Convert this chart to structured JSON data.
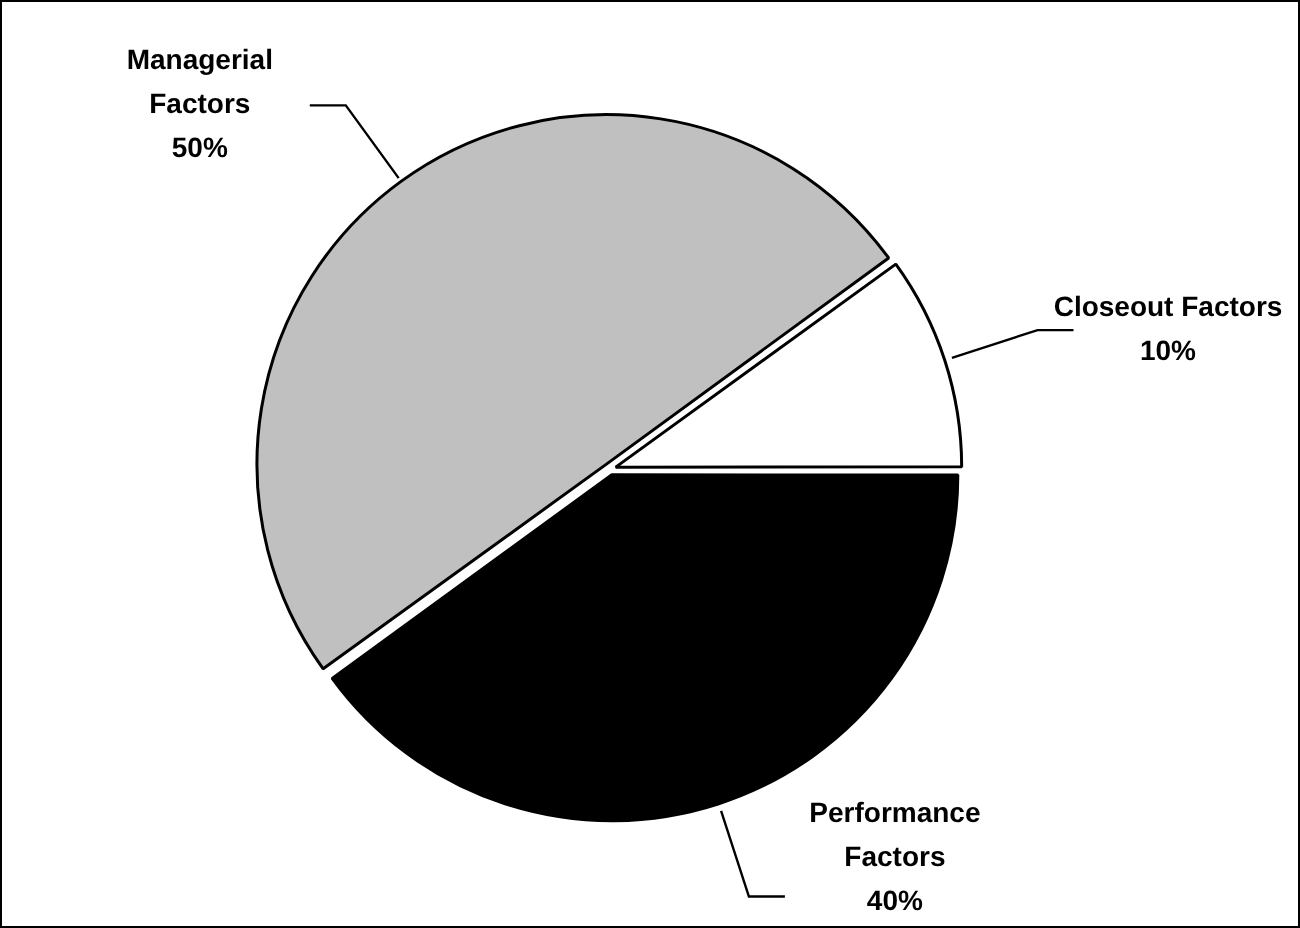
{
  "chart_data": {
    "type": "pie",
    "categories": [
      "Closeout Factors",
      "Performance Factors",
      "Managerial Factors"
    ],
    "values": [
      10,
      40,
      50
    ],
    "value_labels": [
      "10%",
      "40%",
      "50%"
    ],
    "colors": [
      "#ffffff",
      "#000000",
      "#c0c0c0"
    ],
    "legend": false
  }
}
